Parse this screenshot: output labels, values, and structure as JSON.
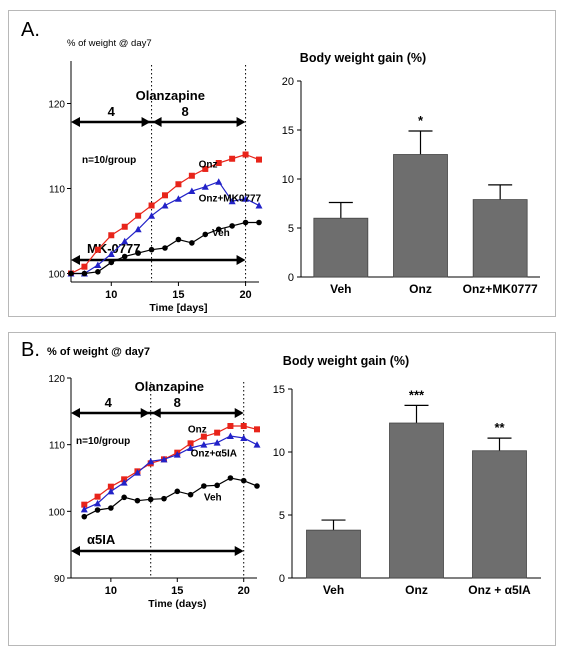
{
  "panels": [
    {
      "label": "A.",
      "line": {
        "ylabel": "% of weight @ day7",
        "xlabel": "Time [days]",
        "xticks": [
          10,
          15,
          20
        ],
        "yticks": [
          100,
          110,
          120
        ],
        "xlim": [
          7,
          21
        ],
        "ylim": [
          99,
          125
        ],
        "arrow1_label": "Olanzapine",
        "arrow1_range": [
          7,
          20
        ],
        "seg_labels": [
          "4",
          "8"
        ],
        "seg_label_x": [
          10,
          15.5
        ],
        "arrow2_label": "MK-0777",
        "arrow2_range": [
          7,
          20
        ],
        "split_days": [
          13,
          20
        ],
        "n_label": "n=10/group",
        "series": [
          {
            "name": "Onz",
            "color": "#e8241a",
            "marker": "square",
            "x": [
              7,
              8,
              9,
              10,
              11,
              12,
              13,
              14,
              15,
              16,
              17,
              18,
              19,
              20,
              21
            ],
            "y": [
              100,
              100.8,
              102.8,
              104.5,
              105.5,
              106.8,
              108,
              109.2,
              110.5,
              111.5,
              112.3,
              113,
              113.5,
              114,
              113.4
            ]
          },
          {
            "name": "Onz+MK0777",
            "color": "#2222c8",
            "marker": "triangle",
            "x": [
              7,
              8,
              9,
              10,
              11,
              12,
              13,
              14,
              15,
              16,
              17,
              18,
              19,
              20,
              21
            ],
            "y": [
              100,
              100,
              101,
              102.3,
              103.8,
              105.2,
              106.8,
              108,
              108.8,
              109.7,
              110.2,
              110.8,
              108.5,
              108.8,
              108
            ]
          },
          {
            "name": "Veh",
            "color": "#000000",
            "marker": "circle",
            "x": [
              7,
              8,
              9,
              10,
              11,
              12,
              13,
              14,
              15,
              16,
              17,
              18,
              19,
              20,
              21
            ],
            "y": [
              100,
              100,
              100.2,
              101.3,
              102,
              102.4,
              102.8,
              103,
              104,
              103.6,
              104.6,
              105.2,
              105.6,
              106,
              106
            ]
          }
        ],
        "series_label_pos": [
          [
            16.5,
            112.5
          ],
          [
            16.5,
            108.5
          ],
          [
            17.5,
            104.4
          ]
        ]
      },
      "bar": {
        "title": "Body weight gain (%)",
        "categories": [
          "Veh",
          "Onz",
          "Onz+MK0777"
        ],
        "values": [
          6,
          12.5,
          7.9
        ],
        "errors": [
          1.6,
          2.4,
          1.5
        ],
        "annotations": [
          "",
          "*",
          ""
        ],
        "yticks": [
          0,
          5,
          10,
          15,
          20
        ],
        "ylim": [
          0,
          20
        ]
      }
    },
    {
      "label": "B.",
      "line": {
        "ylabel": "% of weight @ day7",
        "xlabel": "Time (days)",
        "xticks": [
          10,
          15,
          20
        ],
        "yticks": [
          90,
          100,
          110,
          120
        ],
        "xlim": [
          7,
          21
        ],
        "ylim": [
          90,
          120
        ],
        "arrow1_label": "Olanzapine",
        "arrow1_range": [
          7,
          20
        ],
        "seg_labels": [
          "4",
          "8"
        ],
        "seg_label_x": [
          9.8,
          15
        ],
        "arrow2_label": "α5IA",
        "arrow2_range": [
          7,
          20
        ],
        "split_days": [
          13,
          20
        ],
        "n_label": "n=10/group",
        "series": [
          {
            "name": "Onz",
            "color": "#e8241a",
            "marker": "square",
            "x": [
              8,
              9,
              10,
              11,
              12,
              13,
              14,
              15,
              16,
              17,
              18,
              19,
              20,
              21
            ],
            "y": [
              101,
              102.2,
              103.7,
              104.8,
              106,
              107.2,
              107.8,
              108.8,
              110.2,
              111.2,
              111.8,
              112.8,
              112.8,
              112.3
            ]
          },
          {
            "name": "Onz+α5IA",
            "color": "#2222c8",
            "marker": "triangle",
            "x": [
              8,
              9,
              10,
              11,
              12,
              13,
              14,
              15,
              16,
              17,
              18,
              19,
              20,
              21
            ],
            "y": [
              100.3,
              101.2,
              103,
              104.3,
              105.8,
              107.5,
              107.8,
              108.5,
              109.5,
              110,
              110.3,
              111.3,
              111,
              110
            ]
          },
          {
            "name": "Veh",
            "color": "#000000",
            "marker": "circle",
            "x": [
              8,
              9,
              10,
              11,
              12,
              13,
              14,
              15,
              16,
              17,
              18,
              19,
              20,
              21
            ],
            "y": [
              99.2,
              100.2,
              100.5,
              102.1,
              101.6,
              101.8,
              101.9,
              103,
              102.5,
              103.8,
              103.9,
              105,
              104.6,
              103.8
            ]
          }
        ],
        "series_label_pos": [
          [
            15.8,
            111.8
          ],
          [
            16,
            108.2
          ],
          [
            17,
            101.6
          ]
        ]
      },
      "bar": {
        "title": "Body weight gain (%)",
        "categories": [
          "Veh",
          "Onz",
          "Onz + α5IA"
        ],
        "values": [
          3.8,
          12.3,
          10.1
        ],
        "errors": [
          0.8,
          1.4,
          1.0
        ],
        "annotations": [
          "",
          "***",
          "**"
        ],
        "yticks": [
          0,
          5,
          10,
          15
        ],
        "ylim": [
          0,
          15
        ]
      }
    }
  ]
}
